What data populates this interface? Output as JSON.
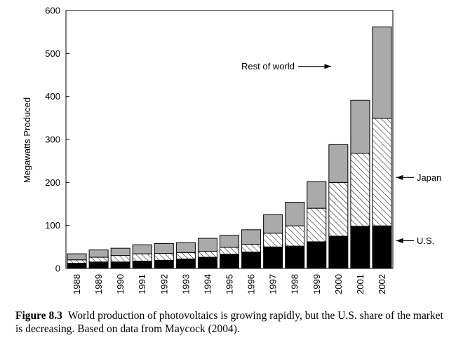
{
  "chart_data": {
    "type": "bar",
    "stacked": true,
    "categories": [
      "1988",
      "1989",
      "1990",
      "1991",
      "1992",
      "1993",
      "1994",
      "1995",
      "1996",
      "1997",
      "1998",
      "1999",
      "2000",
      "2001",
      "2002"
    ],
    "series": [
      {
        "name": "U.S.",
        "values": [
          12,
          15,
          15,
          17,
          19,
          22,
          26,
          33,
          38,
          50,
          52,
          62,
          75,
          98,
          99
        ],
        "color": "#000000",
        "pattern": "solid"
      },
      {
        "name": "Japan",
        "values": [
          8,
          11,
          15,
          17,
          16,
          15,
          14,
          16,
          18,
          32,
          47,
          78,
          125,
          170,
          250
        ],
        "color": "#ffffff",
        "pattern": "hatched"
      },
      {
        "name": "Rest of world",
        "values": [
          14,
          17,
          17,
          21,
          23,
          23,
          30,
          28,
          34,
          43,
          55,
          62,
          88,
          123,
          213
        ],
        "color": "#aaaaaa",
        "pattern": "solid"
      }
    ],
    "ylabel": "Megawatts Produced",
    "xlabel": "",
    "ylim": [
      0,
      600
    ],
    "yticks": [
      0,
      100,
      200,
      300,
      400,
      500,
      600
    ],
    "annotations": {
      "rest": "Rest of world",
      "japan": "Japan",
      "us": "U.S."
    }
  },
  "caption": {
    "label": "Figure 8.3",
    "text": "World production of photovoltaics is growing rapidly, but the U.S. share of the market is decreasing. Based on data from Maycock (2004)."
  }
}
